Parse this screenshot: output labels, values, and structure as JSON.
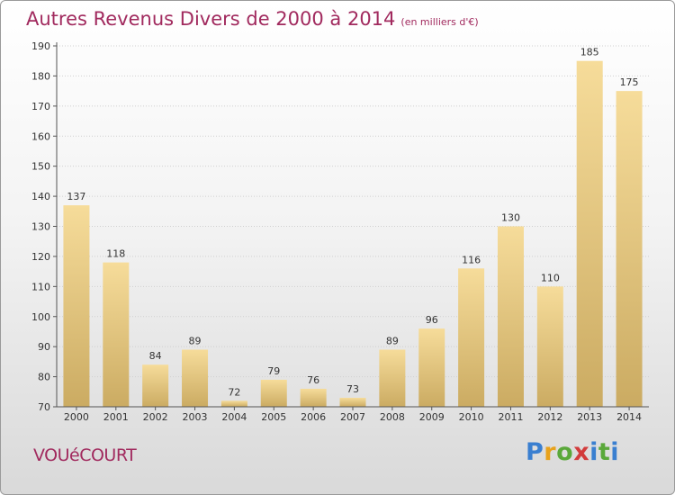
{
  "header": {
    "title": "Autres Revenus Divers de 2000 à 2014",
    "subtitle": "(en milliers d'€)"
  },
  "footer": {
    "city": "VOUéCOURT",
    "logo": {
      "letters": [
        "P",
        "r",
        "o",
        "x",
        "i",
        "t",
        "i"
      ],
      "colors": [
        "#3a7fd0",
        "#e8a21c",
        "#5aa83a",
        "#d23c3c",
        "#3a7fd0",
        "#5aa83a",
        "#3a7fd0"
      ]
    }
  },
  "colors": {
    "title": "#a12a5e",
    "bar_light": "#f6dc9a",
    "bar_dark": "#cbab62",
    "axis": "#555555"
  },
  "chart_data": {
    "type": "bar",
    "title": "Autres Revenus Divers de 2000 à 2014",
    "subtitle": "(en milliers d'€)",
    "categories": [
      "2000",
      "2001",
      "2002",
      "2003",
      "2004",
      "2005",
      "2006",
      "2007",
      "2008",
      "2009",
      "2010",
      "2011",
      "2012",
      "2013",
      "2014"
    ],
    "values": [
      137,
      118,
      84,
      89,
      72,
      79,
      76,
      73,
      89,
      96,
      116,
      130,
      110,
      185,
      175
    ],
    "ylim": [
      70,
      190
    ],
    "yticks": [
      70,
      80,
      90,
      100,
      110,
      120,
      130,
      140,
      150,
      160,
      170,
      180,
      190
    ],
    "grid": "horizontal"
  }
}
